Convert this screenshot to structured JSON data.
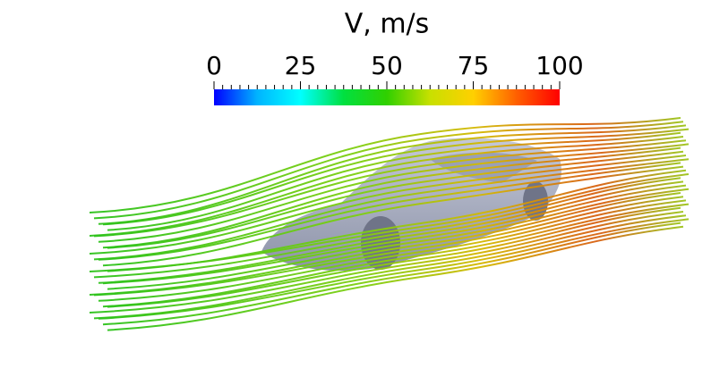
{
  "colorbar": {
    "title": "V, m/s",
    "range": [
      0,
      100
    ],
    "ticks": [
      0,
      25,
      50,
      75,
      100
    ],
    "colormap": [
      "#0000ff",
      "#00b4ff",
      "#00ffff",
      "#00e040",
      "#30d000",
      "#c8e000",
      "#ffd000",
      "#ff6000",
      "#ff0000"
    ]
  }
}
